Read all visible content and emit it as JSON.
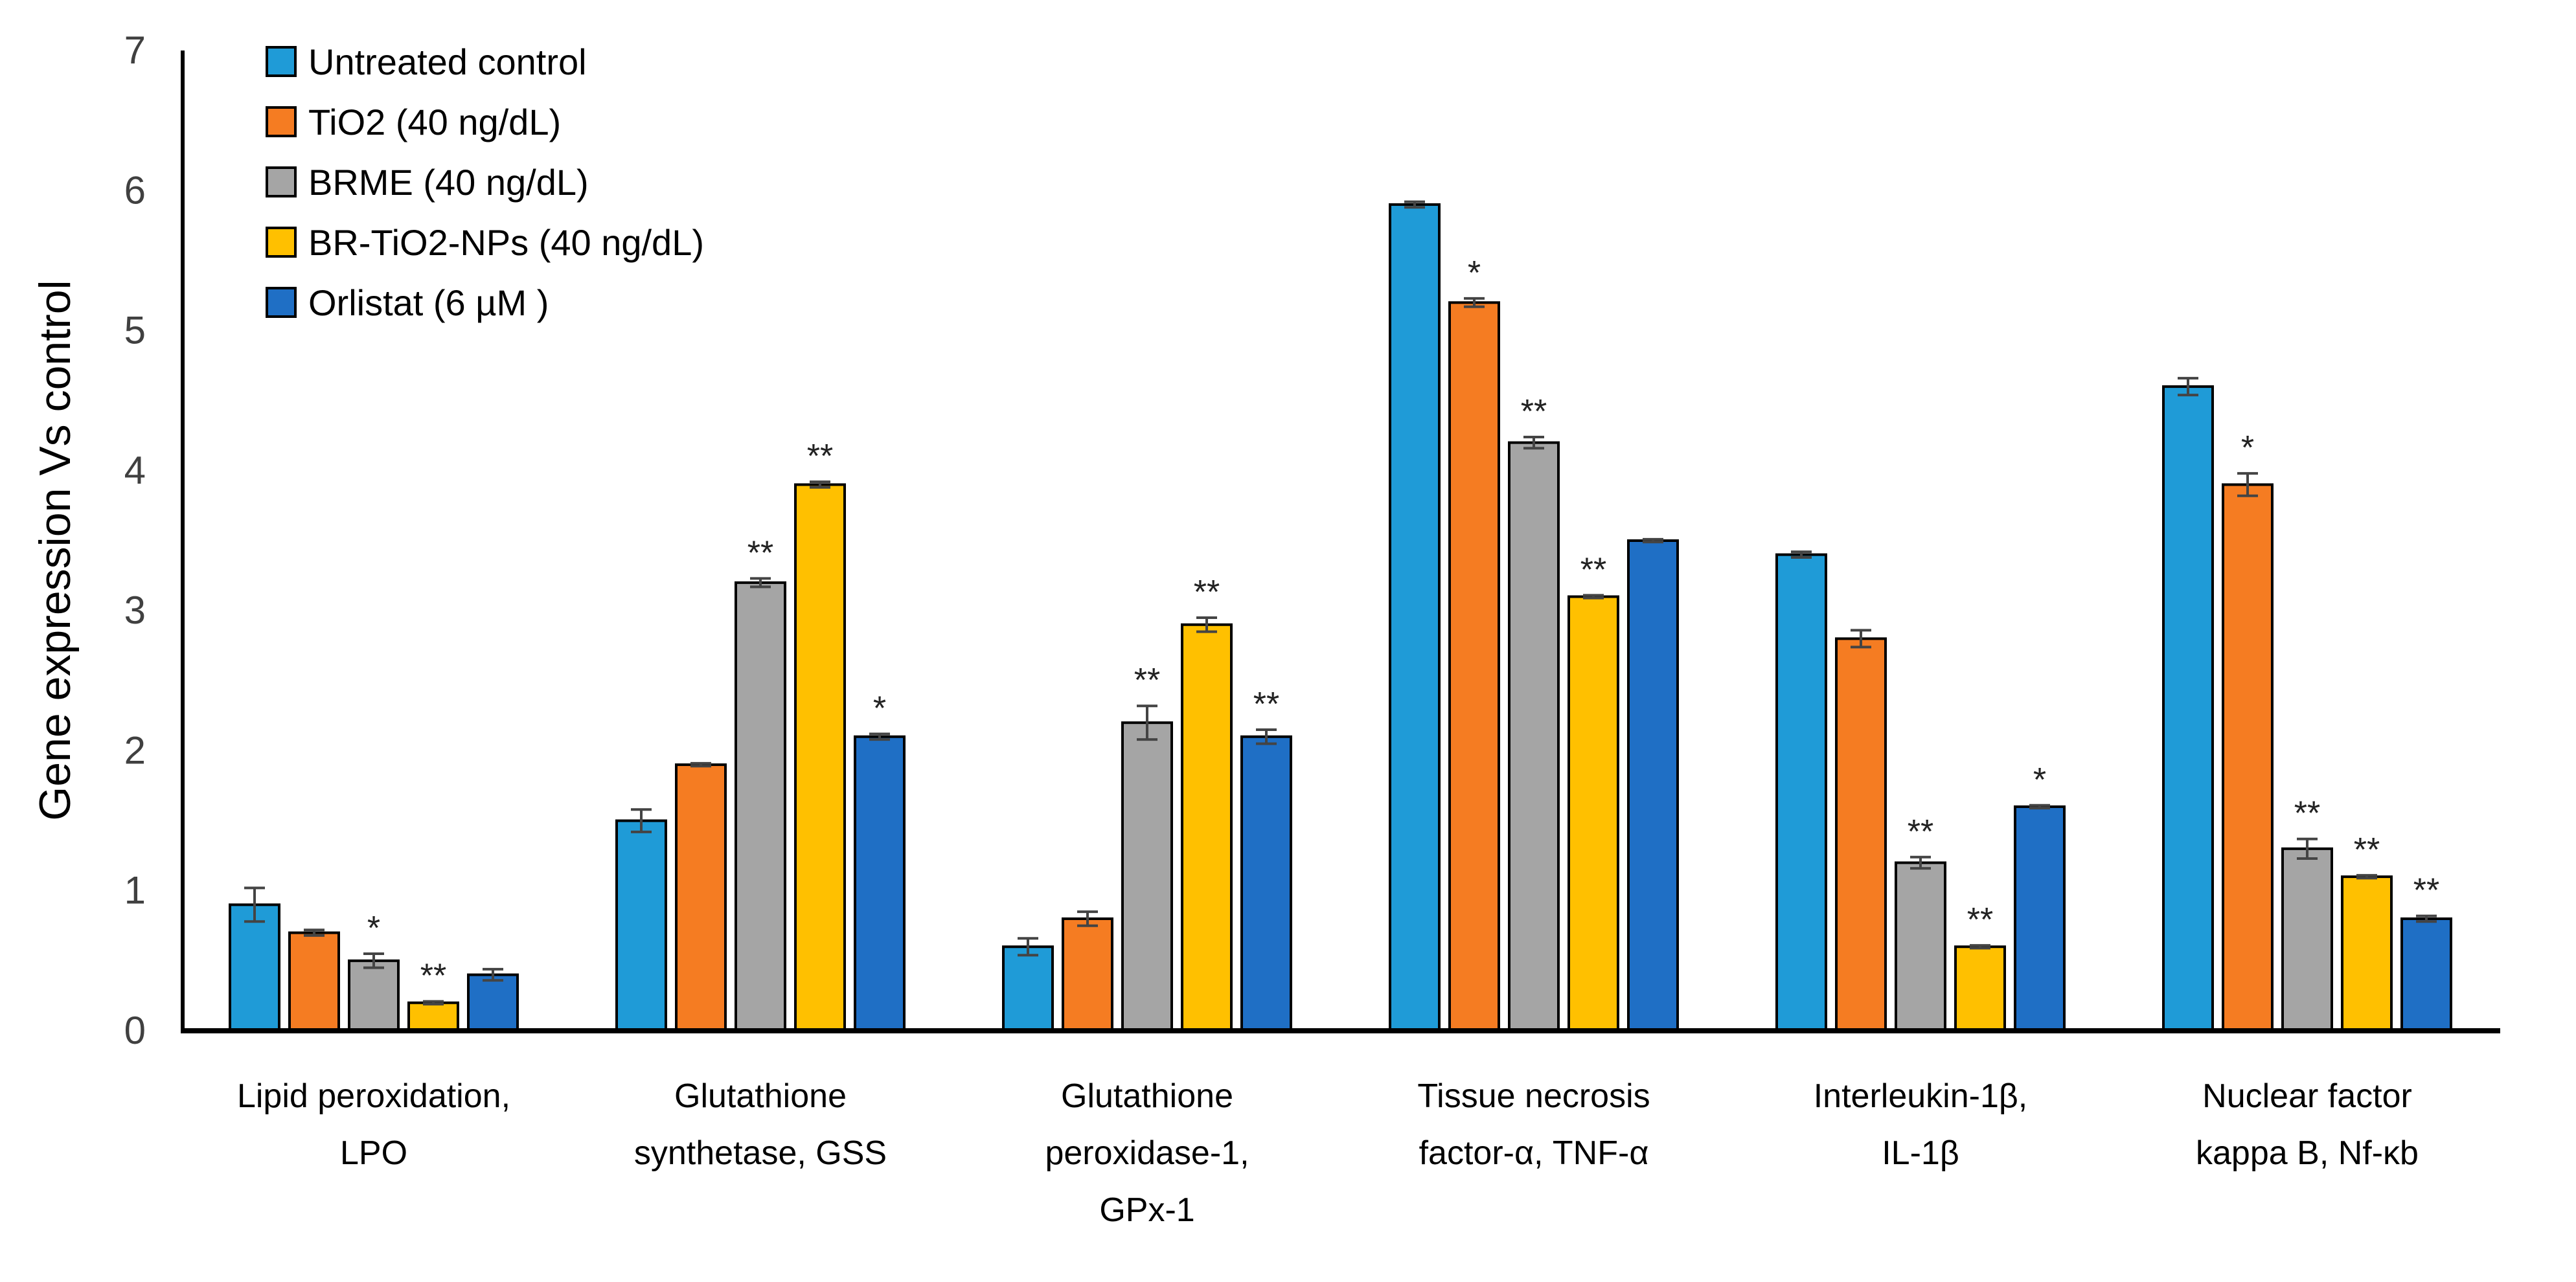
{
  "chart_data": {
    "type": "bar",
    "title": "",
    "xlabel": "",
    "ylabel": "Gene expression Vs control",
    "ylim": [
      0,
      7
    ],
    "yticks": [
      "0",
      "1",
      "2",
      "3",
      "4",
      "5",
      "6",
      "7"
    ],
    "grid": false,
    "legend_position": "top-left",
    "categories": [
      [
        "Lipid peroxidation,",
        "LPO"
      ],
      [
        "Glutathione",
        "synthetase, GSS"
      ],
      [
        "Glutathione",
        "peroxidase-1,",
        "GPx-1"
      ],
      [
        "Tissue necrosis",
        "factor-α, TNF-α"
      ],
      [
        "Interleukin-1β,",
        "IL-1β"
      ],
      [
        "Nuclear factor",
        "kappa B, Nf-κb"
      ]
    ],
    "series": [
      {
        "name": "Untreated control",
        "color": "#1F9BD7",
        "values": [
          0.9,
          1.5,
          0.6,
          5.9,
          3.4,
          4.6
        ],
        "errors": [
          0.12,
          0.08,
          0.06,
          0.02,
          0.02,
          0.06
        ],
        "significance": [
          "",
          "",
          "",
          "",
          "",
          ""
        ]
      },
      {
        "name": "TiO2 (40 ng/dL)",
        "color": "#F57C22",
        "values": [
          0.7,
          1.9,
          0.8,
          5.2,
          2.8,
          3.9
        ],
        "errors": [
          0.02,
          0.01,
          0.05,
          0.03,
          0.06,
          0.08
        ],
        "significance": [
          "",
          "",
          "",
          "*",
          "",
          "*"
        ]
      },
      {
        "name": "BRME (40 ng/dL)",
        "color": "#A5A5A5",
        "values": [
          0.5,
          3.2,
          2.2,
          4.2,
          1.2,
          1.3
        ],
        "errors": [
          0.05,
          0.03,
          0.12,
          0.04,
          0.04,
          0.07
        ],
        "significance": [
          "*",
          "**",
          "**",
          "**",
          "**",
          "**"
        ]
      },
      {
        "name": "BR-TiO2-NPs (40 ng/dL)",
        "color": "#FFC000",
        "values": [
          0.2,
          3.9,
          2.9,
          3.1,
          0.6,
          1.1
        ],
        "errors": [
          0.01,
          0.02,
          0.05,
          0.01,
          0.01,
          0.01
        ],
        "significance": [
          "**",
          "**",
          "**",
          "**",
          "**",
          "**"
        ]
      },
      {
        "name": "Orlistat (6 µM )",
        "color": "#1F6FC5",
        "values": [
          0.4,
          2.1,
          2.1,
          3.5,
          1.6,
          0.8
        ],
        "errors": [
          0.04,
          0.02,
          0.05,
          0.01,
          0.01,
          0.02
        ],
        "significance": [
          "",
          "*",
          "**",
          "",
          "*",
          "**"
        ]
      }
    ]
  }
}
